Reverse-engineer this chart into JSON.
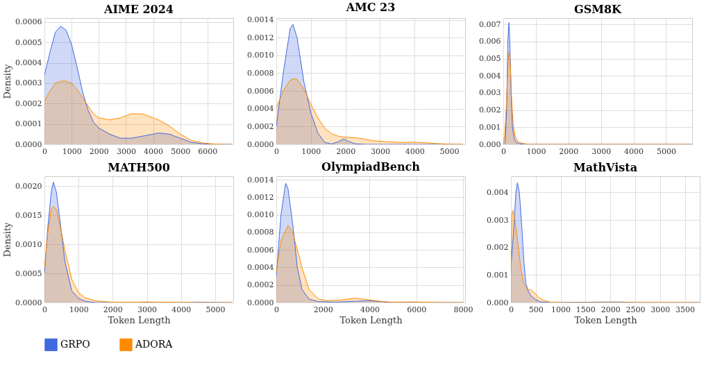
{
  "chart_data": [
    {
      "type": "area",
      "title": "AIME 2024",
      "ylabel": "Density",
      "xlim": [
        0,
        6950
      ],
      "xticks": [
        0,
        1000,
        2000,
        3000,
        4000,
        5000,
        6000
      ],
      "ylim": [
        0,
        0.00062
      ],
      "yticks": [
        {
          "value": 0,
          "label": "0.0000"
        },
        0.0001,
        0.0002,
        0.0003,
        0.0004,
        0.0005,
        0.0006
      ],
      "grid": true,
      "legend": "bottom",
      "series": [
        {
          "name": "GRPO",
          "color": "#4169e1",
          "x": [
            0,
            200,
            400,
            600,
            800,
            1000,
            1200,
            1400,
            1600,
            1800,
            2000,
            2400,
            2800,
            3200,
            3600,
            4000,
            4200,
            4600,
            5000,
            5400,
            5800,
            6200,
            6600,
            6900
          ],
          "values": [
            0.00034,
            0.00045,
            0.00055,
            0.00058,
            0.00056,
            0.00049,
            0.00038,
            0.00026,
            0.00017,
            0.00011,
            8e-05,
            5e-05,
            3e-05,
            3e-05,
            4e-05,
            5e-05,
            5.5e-05,
            5e-05,
            3e-05,
            1e-05,
            3e-06,
            0,
            0,
            0
          ]
        },
        {
          "name": "ADORA",
          "color": "#ff8c00",
          "x": [
            0,
            200,
            400,
            600,
            800,
            1000,
            1200,
            1400,
            1600,
            1800,
            2000,
            2400,
            2800,
            3200,
            3600,
            4000,
            4200,
            4600,
            5000,
            5400,
            5800,
            6200,
            6600,
            6900
          ],
          "values": [
            0.00021,
            0.00026,
            0.0003,
            0.00031,
            0.00031,
            0.0003,
            0.00027,
            0.00023,
            0.00019,
            0.00015,
            0.00013,
            0.00012,
            0.00013,
            0.00015,
            0.00015,
            0.00013,
            0.00012,
            9e-05,
            5e-05,
            2e-05,
            7e-06,
            2e-06,
            0,
            0
          ]
        }
      ]
    },
    {
      "type": "area",
      "title": "AMC 23",
      "xlim": [
        0,
        5460
      ],
      "xticks": [
        0,
        1000,
        2000,
        3000,
        4000,
        5000
      ],
      "ylim": [
        0,
        0.00142
      ],
      "yticks": [
        {
          "value": 0,
          "label": "0.0000"
        },
        0.0002,
        0.0004,
        0.0006,
        0.0008,
        {
          "value": 0.001,
          "label": "0.0010"
        },
        0.0012,
        0.0014
      ],
      "grid": true,
      "legend": "bottom",
      "series": [
        {
          "name": "GRPO",
          "color": "#4169e1",
          "x": [
            0,
            200,
            400,
            480,
            600,
            800,
            1000,
            1200,
            1400,
            1600,
            1800,
            1950,
            2100,
            2300,
            2600,
            3500,
            4500,
            5400
          ],
          "values": [
            0.0002,
            0.0008,
            0.0013,
            0.00135,
            0.0012,
            0.0007,
            0.00035,
            0.00013,
            2e-05,
            5e-06,
            3e-05,
            6e-05,
            3e-05,
            5e-06,
            0,
            0,
            0,
            0
          ]
        },
        {
          "name": "ADORA",
          "color": "#ff8c00",
          "x": [
            0,
            200,
            400,
            520,
            600,
            800,
            1000,
            1200,
            1400,
            1600,
            1800,
            2000,
            2400,
            2800,
            3200,
            3600,
            4000,
            4200,
            4600,
            5000,
            5400
          ],
          "values": [
            0.00041,
            0.0006,
            0.00072,
            0.00074,
            0.00073,
            0.00062,
            0.00045,
            0.0003,
            0.00018,
            0.00012,
            9e-05,
            8e-05,
            7e-05,
            4e-05,
            3e-05,
            2e-05,
            2.5e-05,
            2e-05,
            1e-05,
            2e-06,
            0
          ]
        }
      ]
    },
    {
      "type": "area",
      "title": "GSM8K",
      "xlim": [
        0,
        5800
      ],
      "xticks": [
        0,
        1000,
        2000,
        3000,
        4000,
        5000
      ],
      "ylim": [
        0,
        0.00737
      ],
      "yticks": [
        {
          "value": 0,
          "label": "0.000"
        },
        0.001,
        0.002,
        0.003,
        0.004,
        0.005,
        0.006,
        0.007
      ],
      "grid": true,
      "legend": "bottom",
      "series": [
        {
          "name": "GRPO",
          "color": "#4169e1",
          "x": [
            0,
            60,
            100,
            140,
            170,
            200,
            240,
            280,
            340,
            400,
            500,
            700,
            1000,
            3000,
            5800
          ],
          "values": [
            0,
            0.0001,
            0.002,
            0.006,
            0.0071,
            0.006,
            0.003,
            0.001,
            0.0003,
            0.0001,
            3e-05,
            0,
            0,
            0,
            0
          ]
        },
        {
          "name": "ADORA",
          "color": "#ff8c00",
          "x": [
            0,
            40,
            100,
            150,
            180,
            220,
            260,
            300,
            360,
            450,
            600,
            800,
            3000,
            5800
          ],
          "values": [
            0,
            0.0005,
            0.0025,
            0.005,
            0.0054,
            0.0045,
            0.0025,
            0.0012,
            0.0005,
            0.00015,
            5e-05,
            0,
            0,
            0
          ]
        }
      ]
    },
    {
      "type": "area",
      "title": "MATH500",
      "xlabel": "Token Length",
      "ylabel": "Density",
      "xlim": [
        0,
        5530
      ],
      "xticks": [
        0,
        1000,
        2000,
        3000,
        4000,
        5000
      ],
      "ylim": [
        0,
        0.00217
      ],
      "yticks": [
        {
          "value": 0,
          "label": "0.0000"
        },
        0.0005,
        {
          "value": 0.001,
          "label": "0.0010"
        },
        0.0015,
        {
          "value": 0.002,
          "label": "0.0020"
        }
      ],
      "grid": true,
      "legend": "bottom",
      "series": [
        {
          "name": "GRPO",
          "color": "#4169e1",
          "x": [
            0,
            100,
            200,
            260,
            350,
            500,
            600,
            800,
            1000,
            1200,
            1500,
            2500,
            3000,
            4000,
            4500,
            5000,
            5500
          ],
          "values": [
            0.0005,
            0.0013,
            0.0019,
            0.00207,
            0.0019,
            0.0012,
            0.0007,
            0.0002,
            7e-05,
            2e-05,
            0,
            0,
            5e-06,
            0,
            8e-06,
            2e-06,
            0
          ]
        },
        {
          "name": "ADORA",
          "color": "#ff8c00",
          "x": [
            0,
            100,
            200,
            260,
            350,
            500,
            600,
            800,
            1000,
            1200,
            1500,
            2000,
            2500,
            3000,
            3500,
            4000,
            5000,
            5500
          ],
          "values": [
            0.0006,
            0.0012,
            0.0016,
            0.00165,
            0.0016,
            0.0012,
            0.0009,
            0.0004,
            0.00017,
            8e-05,
            3e-05,
            5e-06,
            3e-06,
            1e-05,
            5e-06,
            3e-06,
            0,
            0
          ]
        }
      ]
    },
    {
      "type": "area",
      "title": "OlympiadBench",
      "xlabel": "Token Length",
      "xlim": [
        0,
        8090
      ],
      "xticks": [
        0,
        2000,
        4000,
        6000,
        8000
      ],
      "ylim": [
        0,
        0.00144
      ],
      "yticks": [
        {
          "value": 0,
          "label": "0.0000"
        },
        0.0002,
        0.0004,
        0.0006,
        0.0008,
        {
          "value": 0.001,
          "label": "0.0010"
        },
        0.0012,
        0.0014
      ],
      "grid": true,
      "legend": "bottom",
      "series": [
        {
          "name": "GRPO",
          "color": "#4169e1",
          "x": [
            0,
            200,
            400,
            500,
            700,
            900,
            1100,
            1400,
            1800,
            2500,
            3500,
            4000,
            4500,
            5000,
            8000
          ],
          "values": [
            0.0003,
            0.001,
            0.00136,
            0.0013,
            0.0009,
            0.0004,
            0.00015,
            4e-05,
            1e-05,
            5e-06,
            1.5e-05,
            2e-05,
            1e-05,
            0,
            0
          ]
        },
        {
          "name": "ADORA",
          "color": "#ff8c00",
          "x": [
            0,
            200,
            500,
            700,
            900,
            1100,
            1400,
            1800,
            2200,
            2800,
            3400,
            4000,
            4600,
            5000,
            5800,
            6400,
            7000,
            8000
          ],
          "values": [
            0.00035,
            0.0007,
            0.00088,
            0.0008,
            0.0006,
            0.0004,
            0.00015,
            4e-05,
            2e-05,
            3e-05,
            5e-05,
            3e-05,
            1e-05,
            5e-06,
            8e-06,
            4e-06,
            1e-06,
            0
          ]
        }
      ]
    },
    {
      "type": "area",
      "title": "MathVista",
      "xlabel": "Token Length",
      "xlim": [
        0,
        3800
      ],
      "xticks": [
        0,
        500,
        1000,
        1500,
        2000,
        2500,
        3000,
        3500
      ],
      "ylim": [
        0,
        0.00459
      ],
      "yticks": [
        {
          "value": 0,
          "label": "0.000"
        },
        0.001,
        0.002,
        0.003,
        0.004
      ],
      "grid": true,
      "legend": "bottom",
      "series": [
        {
          "name": "GRPO",
          "color": "#4169e1",
          "x": [
            0,
            50,
            100,
            130,
            170,
            220,
            260,
            300,
            350,
            400,
            500,
            600,
            800,
            2000,
            2200,
            2500,
            3800
          ],
          "values": [
            0.0013,
            0.0025,
            0.004,
            0.00435,
            0.004,
            0.0027,
            0.0015,
            0.0007,
            0.0004,
            0.00025,
            0.0001,
            2e-05,
            0,
            2e-05,
            2e-05,
            0,
            0
          ]
        },
        {
          "name": "ADORA",
          "color": "#ff8c00",
          "x": [
            0,
            20,
            40,
            80,
            150,
            200,
            260,
            320,
            400,
            480,
            550,
            650,
            800,
            1000,
            3000,
            3800
          ],
          "values": [
            0.001,
            0.0032,
            0.00335,
            0.003,
            0.002,
            0.0012,
            0.0007,
            0.0005,
            0.00045,
            0.00035,
            0.0002,
            8e-05,
            1e-05,
            0,
            5e-06,
            0
          ]
        }
      ]
    }
  ]
}
